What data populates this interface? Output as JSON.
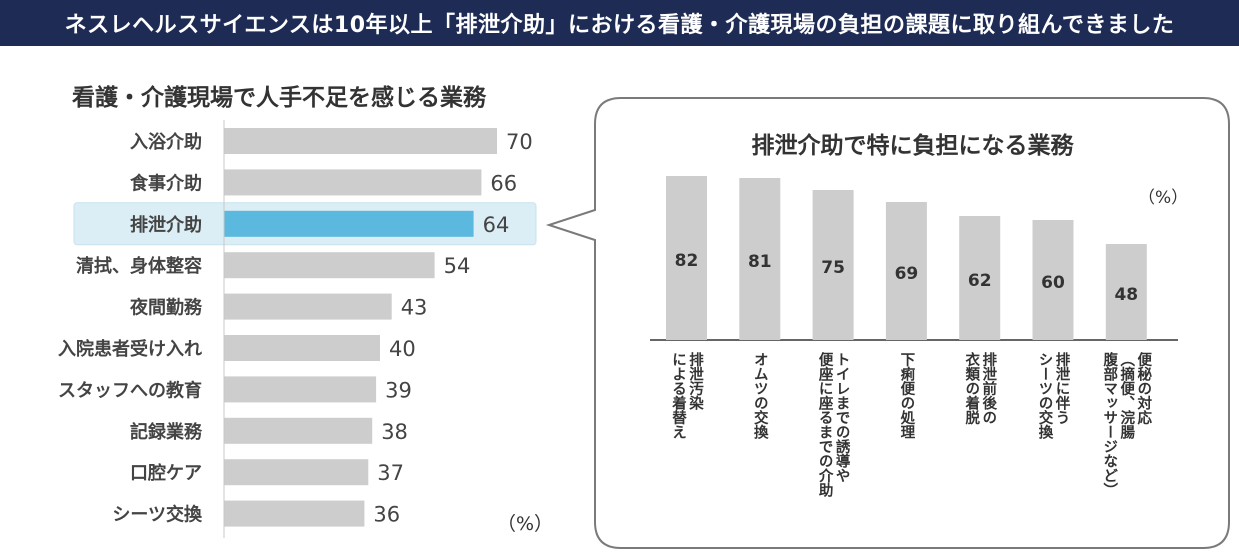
{
  "header": {
    "banner": "ネスレヘルスサイエンスは10年以上「排泄介助」における看護・介護現場の負担の課題に取り組んできました"
  },
  "colors": {
    "banner_bg": "#1e2c55",
    "bar_gray": "#cdcdcd",
    "bar_highlight": "#5bb8de",
    "highlight_bg": "#dbeef5",
    "callout_border": "#7a7a7a"
  },
  "chart_data": [
    {
      "type": "bar",
      "orientation": "horizontal",
      "title": "看護・介護現場で人手不足を感じる業務",
      "unit_label": "（%）",
      "categories": [
        "入浴介助",
        "食事介助",
        "排泄介助",
        "清拭、身体整容",
        "夜間勤務",
        "入院患者受け入れ",
        "スタッフへの教育",
        "記録業務",
        "口腔ケア",
        "シーツ交換"
      ],
      "values": [
        70,
        66,
        64,
        54,
        43,
        40,
        39,
        38,
        37,
        36
      ],
      "highlight": "排泄介助"
    },
    {
      "type": "bar",
      "orientation": "vertical",
      "title": "排泄介助で特に負担になる業務",
      "unit_label": "（%）",
      "categories": [
        [
          "排泄汚染",
          "による着替え"
        ],
        [
          "オムツの交換"
        ],
        [
          "トイレまでの誘導や",
          "便座に座るまでの介助"
        ],
        [
          "下痢便の処理"
        ],
        [
          "排泄前後の",
          "衣類の着脱"
        ],
        [
          "排泄に伴う",
          "シーツの交換"
        ],
        [
          "便秘の対応",
          "（摘便、浣腸",
          "腹部マッサージなど）"
        ]
      ],
      "values": [
        82,
        81,
        75,
        69,
        62,
        60,
        48
      ]
    }
  ]
}
